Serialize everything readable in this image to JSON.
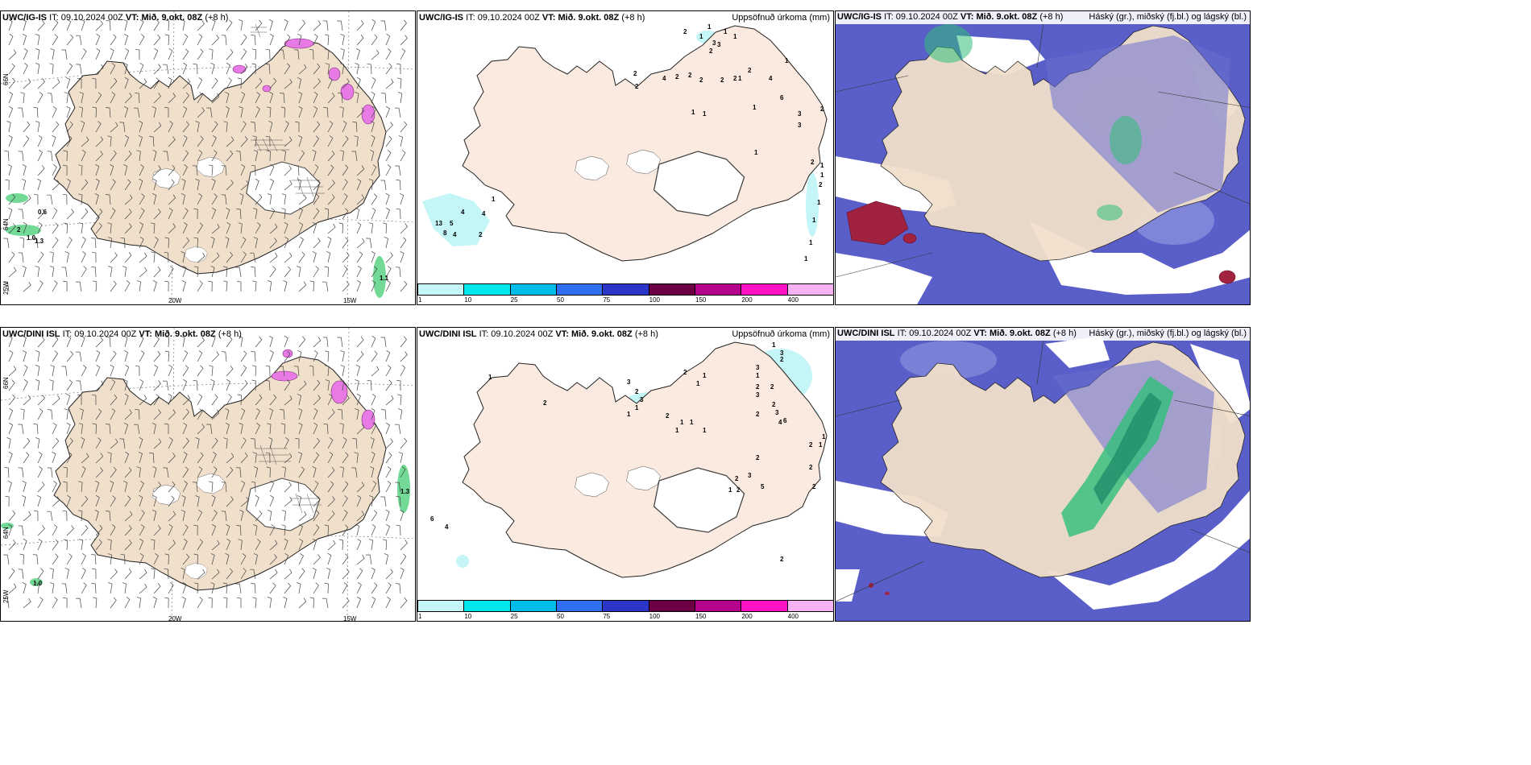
{
  "top_row": {
    "left": {
      "model": "UWC/IG-IS",
      "it_label": "IT:",
      "it": "09.10.2024 00Z",
      "vt_label": "VT:",
      "vt": "Mið. 9.okt. 08Z",
      "lead": "(+8 h)"
    },
    "middle": {
      "model": "UWC/IG-IS",
      "it_label": "IT:",
      "it": "09.10.2024 00Z",
      "vt_label": "VT:",
      "vt": "Mið. 9.okt. 08Z",
      "lead": "(+8 h)",
      "title": "Uppsöfnuð úrkoma (mm)"
    },
    "right": {
      "model": "UWC/IG-IS",
      "it_label": "IT:",
      "it": "09.10.2024 00Z",
      "vt_label": "VT:",
      "vt": "Mið. 9.okt. 08Z",
      "lead": "(+8 h)",
      "title": "Háský (gr.), miðský (fj.bl.) og lágský (bl.)"
    }
  },
  "bottom_row": {
    "left": {
      "model": "UWC/DINI ISL",
      "it_label": "IT:",
      "it": "09.10.2024 00Z",
      "vt_label": "VT:",
      "vt": "Mið. 9.okt. 08Z",
      "lead": "(+8 h)"
    },
    "middle": {
      "model": "UWC/DINI ISL",
      "it_label": "IT:",
      "it": "09.10.2024 00Z",
      "vt_label": "VT:",
      "vt": "Mið. 9.okt. 08Z",
      "lead": "(+8 h)",
      "title": "Uppsöfnuð úrkoma (mm)"
    },
    "right": {
      "model": "UWC/DINI ISL",
      "it_label": "IT:",
      "it": "09.10.2024 00Z",
      "vt_label": "VT:",
      "vt": "Mið. 9.okt. 08Z",
      "lead": "(+8 h)",
      "title": "Háský (gr.), miðský (fj.bl.) og lágský (bl.)"
    }
  },
  "axes": {
    "lat_66": "66N",
    "lat_64": "64N",
    "lon_25": "25W",
    "lon_20": "20W",
    "lon_15": "15W"
  },
  "colorbar": [
    {
      "label": "1",
      "color": "#c4f5f7"
    },
    {
      "label": "10",
      "color": "#00e8ee"
    },
    {
      "label": "25",
      "color": "#00bce8"
    },
    {
      "label": "50",
      "color": "#2f6ff2"
    },
    {
      "label": "75",
      "color": "#2b35c8"
    },
    {
      "label": "100",
      "color": "#6b0045"
    },
    {
      "label": "150",
      "color": "#b5008e"
    },
    {
      "label": "200",
      "color": "#ff12c4"
    },
    {
      "label": "400",
      "color": "#f6b2f2"
    }
  ],
  "precip_top": [
    "1",
    "2",
    "3",
    "2",
    "3",
    "1",
    "1",
    "1",
    "2",
    "2",
    "4",
    "2",
    "2",
    "2",
    "2",
    "2",
    "1",
    "2",
    "4",
    "6",
    "3",
    "3",
    "1",
    "2",
    "1",
    "1",
    "1",
    "2",
    "1",
    "1",
    "2",
    "1",
    "1",
    "1",
    "1",
    "1",
    "4",
    "4",
    "13",
    "5",
    "8",
    "4",
    "2",
    "1"
  ],
  "precip_bottom": [
    "1",
    "2",
    "3",
    "2",
    "3",
    "1",
    "1",
    "2",
    "1",
    "1",
    "1",
    "2",
    "1",
    "1",
    "1",
    "1",
    "3",
    "2",
    "3",
    "1",
    "2",
    "3",
    "2",
    "2",
    "3",
    "2",
    "4",
    "6",
    "2",
    "1",
    "1",
    "2",
    "2",
    "2",
    "2",
    "1",
    "2",
    "2",
    "5",
    "3",
    "6",
    "4"
  ],
  "wind_labels_top": [
    "0.6",
    "2",
    "1.0",
    "1.3",
    "1.1"
  ],
  "wind_labels_bottom": [
    "1.3",
    "1.0"
  ],
  "colors": {
    "land": "#f0dfcb",
    "land_mid": "#fbeadf",
    "ocean_low": "#5a5ec8",
    "ocean_low_light": "#7d85d8",
    "high_cloud_green": "#2fbf7a",
    "mid_cloud_red": "#a0223f",
    "ice": "#ffffff",
    "precip_cyan": "#c4f5f7",
    "snow_pink": "#e87ae6"
  }
}
